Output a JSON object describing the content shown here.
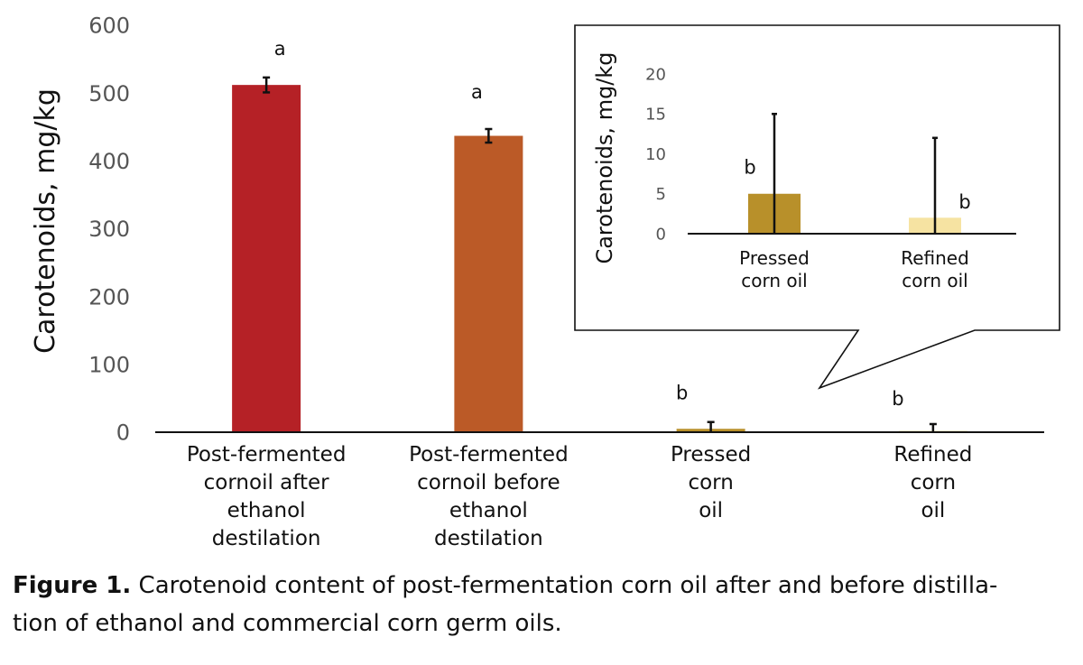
{
  "chart_data": [
    {
      "type": "bar",
      "ylabel": "Carotenoids, mg/kg",
      "ylim": [
        0,
        600
      ],
      "yticks": [
        0,
        100,
        200,
        300,
        400,
        500,
        600
      ],
      "grid": false,
      "categories": [
        [
          "Post-fermented",
          "cornoil after",
          "ethanol",
          "destilation"
        ],
        [
          "Post-fermented",
          "cornoil before",
          "ethanol",
          "destilation"
        ],
        [
          "Pressed",
          "corn",
          "oil"
        ],
        [
          "Refined",
          "corn",
          "oil"
        ]
      ],
      "values": [
        512,
        437,
        5,
        2
      ],
      "errors": [
        11,
        10,
        10,
        10
      ],
      "letters": [
        "a",
        "a",
        "b",
        "b"
      ],
      "colors": [
        "#b52126",
        "#bb5a27",
        "#b8902a",
        "#f6e3a2"
      ]
    },
    {
      "type": "bar",
      "ylabel": "Carotenoids, mg/kg",
      "ylim": [
        0,
        20
      ],
      "yticks": [
        0,
        5,
        10,
        15,
        20
      ],
      "grid": false,
      "categories": [
        [
          "Pressed",
          "corn oil"
        ],
        [
          "Refined",
          "corn oil"
        ]
      ],
      "values": [
        5,
        2
      ],
      "errors": [
        10,
        10
      ],
      "letters": [
        "b",
        "b"
      ],
      "colors": [
        "#b8902a",
        "#f6e3a2"
      ]
    }
  ],
  "caption": {
    "label": "Figure 1.",
    "lines": [
      " Carotenoid content of post-fermentation corn oil after and before distilla-",
      "tion of ethanol and commercial corn germ oils."
    ]
  }
}
